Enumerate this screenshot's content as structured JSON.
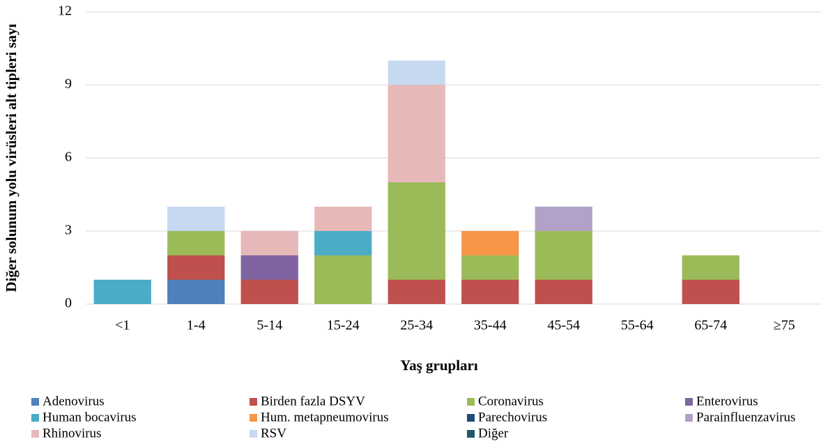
{
  "chart_data": {
    "type": "stacked_bar",
    "x_label": "Yaş grupları",
    "y_label": "Diğer solunum yolu virüsleri alt tipleri sayı",
    "categories": [
      "<1",
      "1-4",
      "5-14",
      "15-24",
      "25-34",
      "35-44",
      "45-54",
      "55-64",
      "65-74",
      "≥75"
    ],
    "ylim": [
      0,
      12
    ],
    "yticks": [
      0,
      3,
      6,
      9,
      12
    ],
    "grid": true,
    "series": [
      {
        "name": "Adenovirus",
        "color": "#4f81bd",
        "values": [
          0,
          1,
          0,
          0,
          0,
          0,
          0,
          0,
          0,
          0
        ]
      },
      {
        "name": "Birden fazla DSYV",
        "color": "#c0504d",
        "values": [
          0,
          1,
          1,
          0,
          1,
          1,
          1,
          0,
          1,
          0
        ]
      },
      {
        "name": "Coronavirus",
        "color": "#9bbb59",
        "values": [
          0,
          1,
          0,
          2,
          4,
          1,
          2,
          0,
          1,
          0
        ]
      },
      {
        "name": "Enterovirus",
        "color": "#8064a2",
        "values": [
          0,
          0,
          1,
          0,
          0,
          0,
          0,
          0,
          0,
          0
        ]
      },
      {
        "name": "Human bocavirus",
        "color": "#4bacc6",
        "values": [
          1,
          0,
          0,
          1,
          0,
          0,
          0,
          0,
          0,
          0
        ]
      },
      {
        "name": "Hum. metapneumovirus",
        "color": "#f79646",
        "values": [
          0,
          0,
          0,
          0,
          0,
          1,
          0,
          0,
          0,
          0
        ]
      },
      {
        "name": "Parechovirus",
        "color": "#1f497d",
        "values": [
          0,
          0,
          0,
          0,
          0,
          0,
          0,
          0,
          0,
          0
        ]
      },
      {
        "name": "Parainfluenzavirus",
        "color": "#b2a2c7",
        "values": [
          0,
          0,
          0,
          0,
          0,
          0,
          1,
          0,
          0,
          0
        ]
      },
      {
        "name": "Rhinovirus",
        "color": "#e6b9b8",
        "values": [
          0,
          0,
          1,
          1,
          4,
          0,
          0,
          0,
          0,
          0
        ]
      },
      {
        "name": "RSV",
        "color": "#c6d9f1",
        "values": [
          0,
          1,
          0,
          0,
          1,
          0,
          0,
          0,
          0,
          0
        ]
      },
      {
        "name": "Diğer",
        "color": "#215968",
        "values": [
          0,
          0,
          0,
          0,
          0,
          0,
          0,
          0,
          0,
          0
        ]
      }
    ]
  }
}
